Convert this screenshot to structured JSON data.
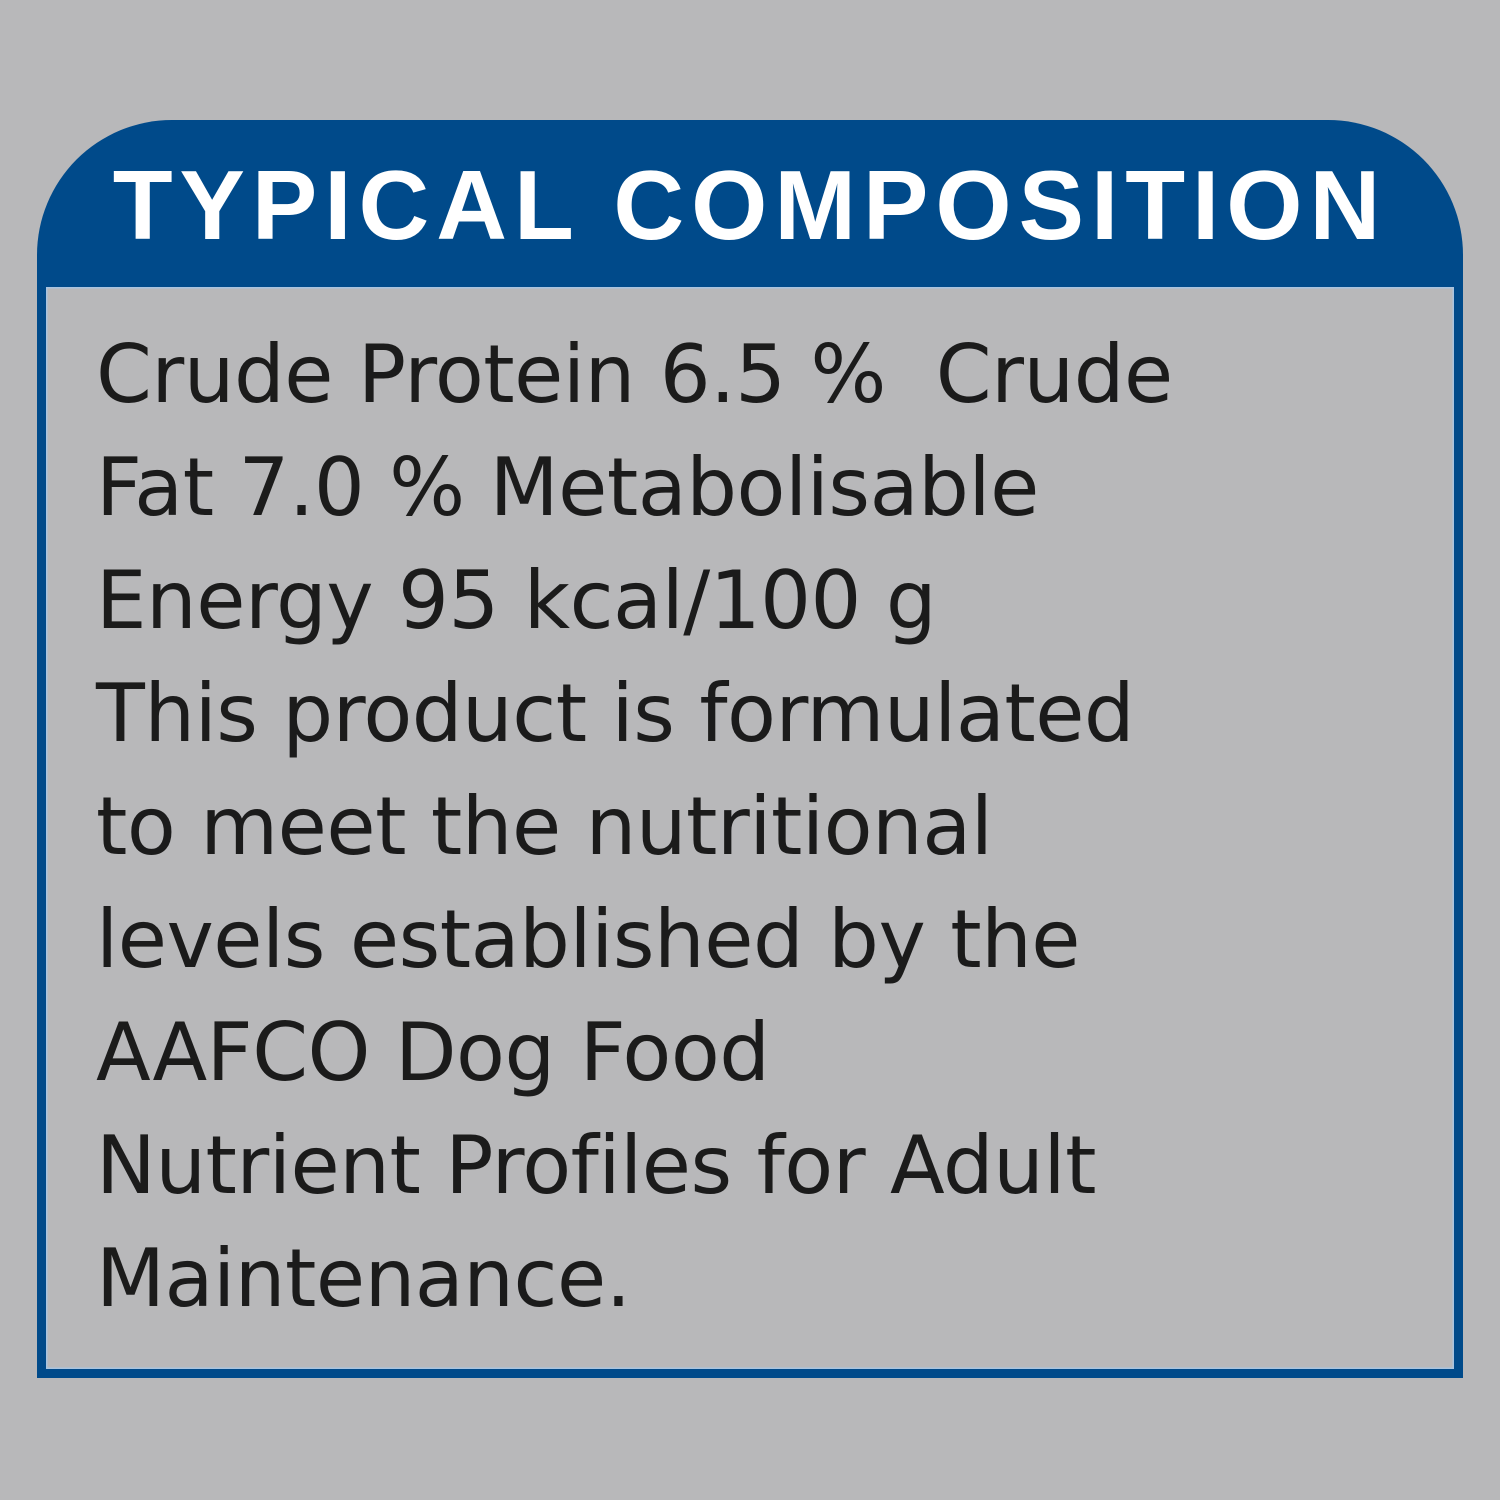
{
  "title": "TYPICAL COMPOSITION",
  "lines": [
    "Crude Protein 6.5 %  Crude",
    "Fat 7.0 % Metabolisable",
    "Energy 95 kcal/100 g",
    "This product is formulated",
    "to meet the nutritional",
    "levels established by the",
    "AAFCO Dog Food",
    "Nutrient Profiles for Adult",
    "Maintenance."
  ],
  "colors": {
    "background": "#b8b8ba",
    "accent": "#004a8a",
    "text": "#1b1b1b",
    "title": "#ffffff"
  }
}
